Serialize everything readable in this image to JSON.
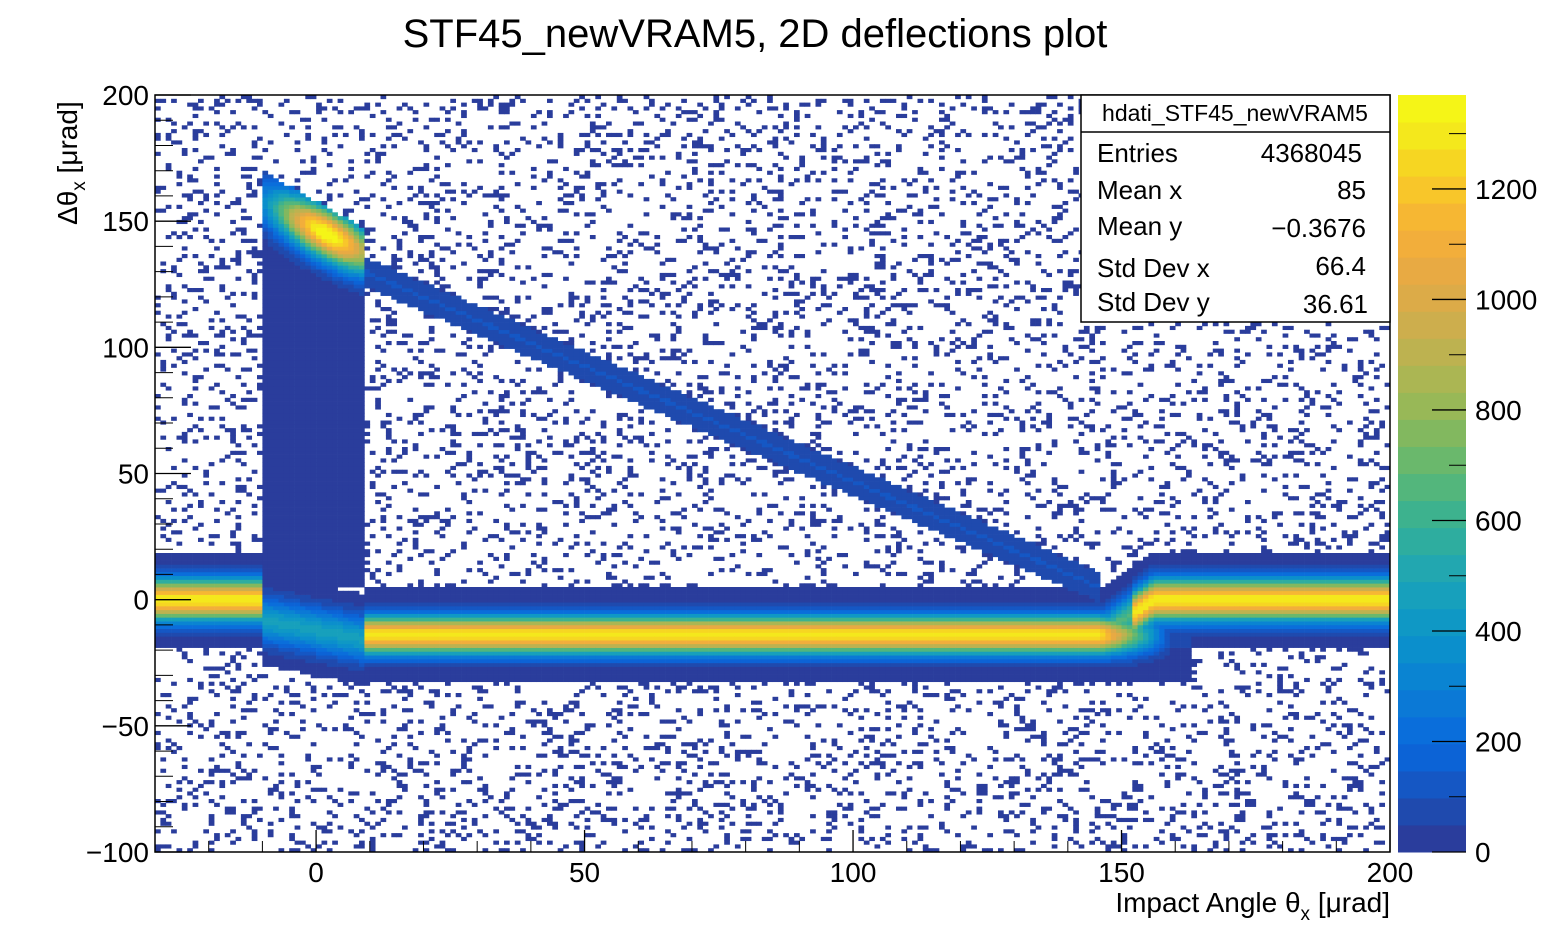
{
  "chart_data": {
    "type": "heatmap",
    "title": "STF45_newVRAM5, 2D deflections plot",
    "xlabel": "Impact Angle θ",
    "xlabel_sub": "x",
    "xlabel_unit": " [μrad]",
    "ylabel": "Δθ",
    "ylabel_sub": "x",
    "ylabel_unit": " [μrad]",
    "xlim": [
      -30,
      200
    ],
    "ylim": [
      -100,
      200
    ],
    "zlim": [
      0,
      1370
    ],
    "x_ticks": [
      0,
      50,
      100,
      150,
      200
    ],
    "x_tick_labels": [
      "0",
      "50",
      "100",
      "150",
      "200"
    ],
    "y_ticks": [
      -100,
      -50,
      0,
      50,
      100,
      150,
      200
    ],
    "y_tick_labels": [
      "−100",
      "−50",
      "0",
      "50",
      "100",
      "150",
      "200"
    ],
    "z_ticks": [
      0,
      200,
      400,
      600,
      800,
      1000,
      1200
    ],
    "z_tick_labels": [
      "0",
      "200",
      "400",
      "600",
      "800",
      "1000",
      "1200"
    ],
    "palette": [
      "#2a3d9c",
      "#1f4aae",
      "#1557c4",
      "#0c63d6",
      "#0a6edb",
      "#0b79d6",
      "#0a84d2",
      "#0b8fcc",
      "#0f98c5",
      "#17a0bc",
      "#22a7b0",
      "#2ead9f",
      "#3db28e",
      "#53b67c",
      "#6ab86c",
      "#82b85f",
      "#98b857",
      "#abb653",
      "#bdb250",
      "#cdae4d",
      "#dcab48",
      "#e8aa43",
      "#f2ae3b",
      "#f6b733",
      "#f8c62a",
      "#f6d622",
      "#f4e81c",
      "#f5f517"
    ],
    "regions": [
      {
        "name": "unchanneled-band-left",
        "x": [
          -30,
          -10
        ],
        "y_center": 0,
        "y_halfwidth": 19,
        "peak": 1300
      },
      {
        "name": "channeling-column",
        "x": [
          -10,
          9
        ],
        "y": [
          5,
          170
        ],
        "peak": 1370,
        "peak_center": [
          2,
          145
        ]
      },
      {
        "name": "transition-band",
        "x": [
          -10,
          9
        ],
        "y_center": -8,
        "y_halfwidth": 18,
        "peak": 450
      },
      {
        "name": "volume-reflection-band",
        "x": [
          9,
          163
        ],
        "y_center": -14,
        "y_halfwidth": 19,
        "peak": 1300
      },
      {
        "name": "volume-capture-stripe",
        "x": [
          9,
          146
        ],
        "y_start": 130,
        "y_end": 5,
        "peak": 400
      },
      {
        "name": "unchanneled-band-right",
        "x": [
          146,
          200
        ],
        "y_center": 0,
        "y_halfwidth": 19,
        "peak": 1300
      }
    ]
  },
  "stats": {
    "name": "hdati_STF45_newVRAM5",
    "rows": [
      {
        "label": "Entries",
        "value": "4368045"
      },
      {
        "label": "Mean x",
        "value": "85"
      },
      {
        "label": "Mean y",
        "value": "−0.3676"
      },
      {
        "label": "Std Dev x",
        "value": "66.4"
      },
      {
        "label": "Std Dev y",
        "value": "36.61"
      }
    ]
  }
}
